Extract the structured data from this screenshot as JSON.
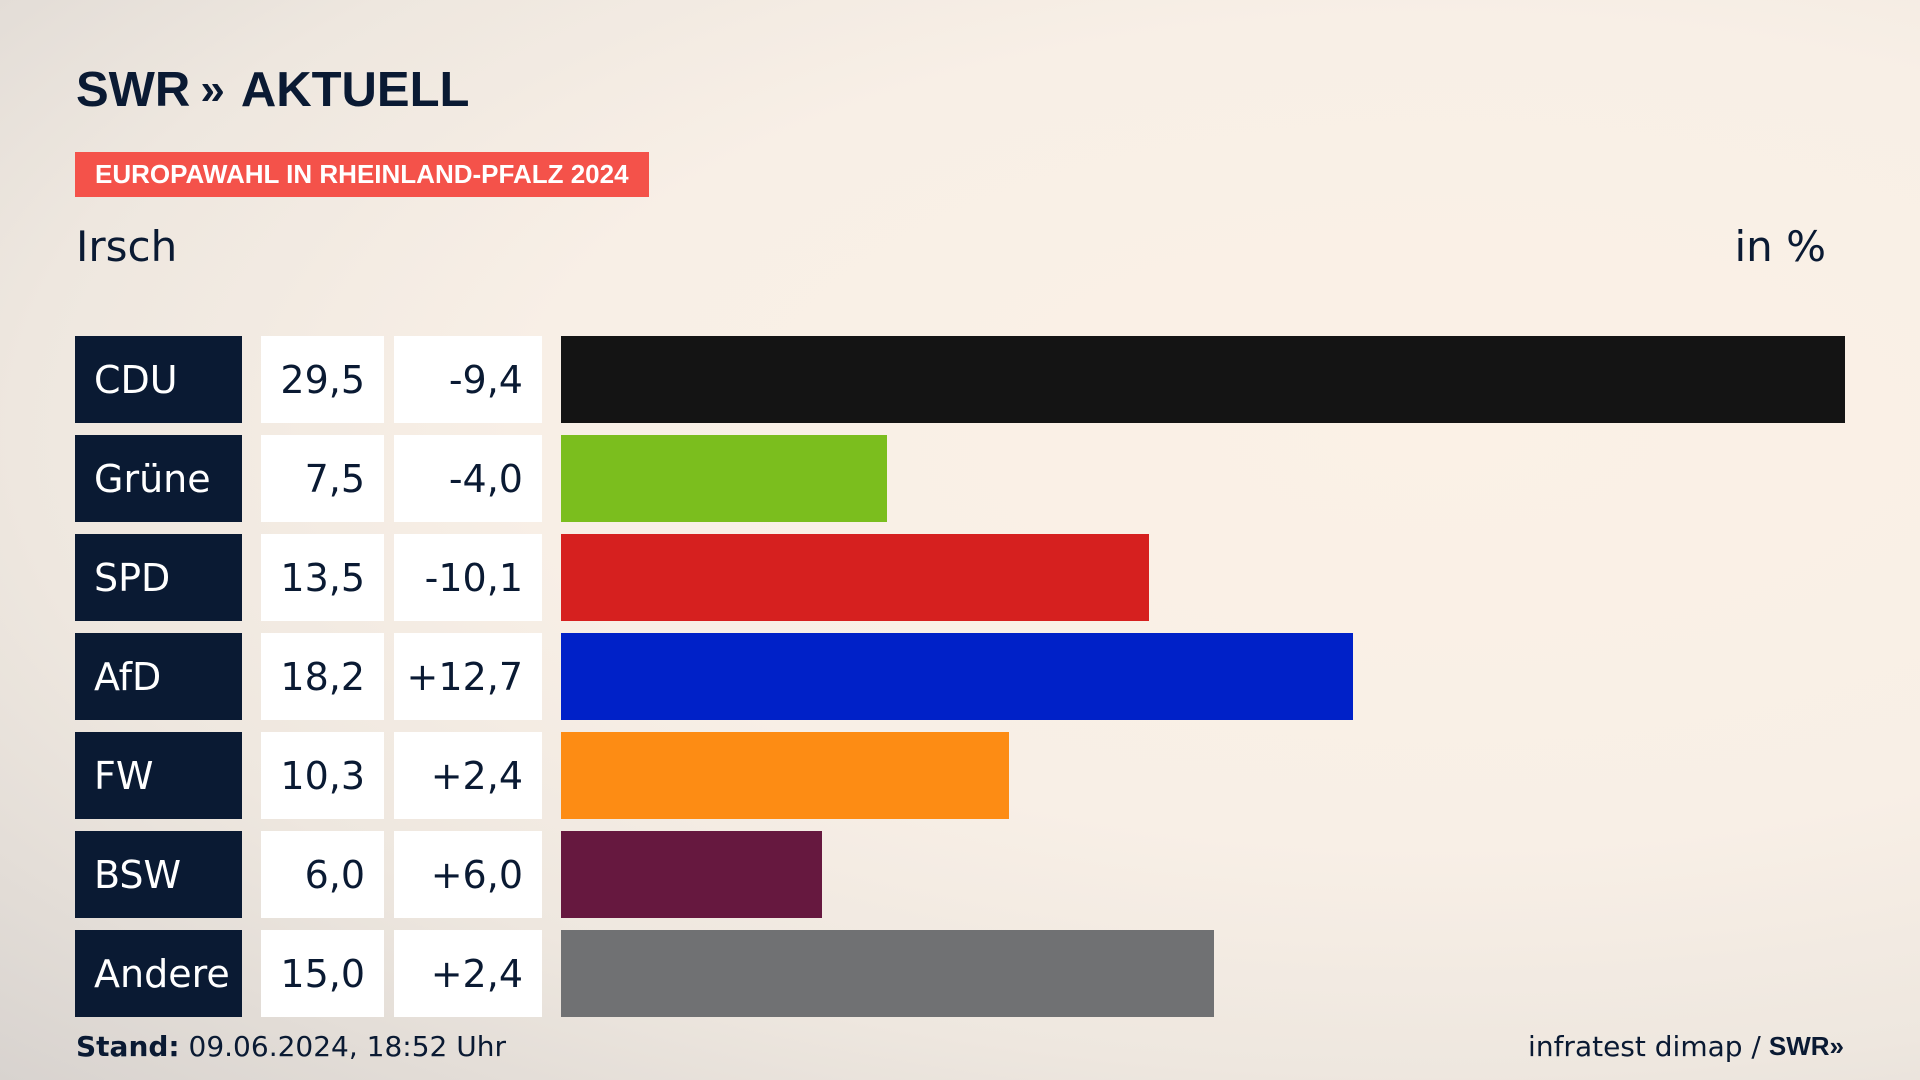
{
  "brand": {
    "name": "SWR",
    "chevrons": "»",
    "section": "AKTUELL"
  },
  "tag": "EUROPAWAHL IN RHEINLAND-PFALZ 2024",
  "place": "Irsch",
  "unit": "in %",
  "chart_data": {
    "type": "bar",
    "title": "Irsch",
    "unit": "in %",
    "categories": [
      "CDU",
      "Grüne",
      "SPD",
      "AfD",
      "FW",
      "BSW",
      "Andere"
    ],
    "values": [
      29.5,
      7.5,
      13.5,
      18.2,
      10.3,
      6.0,
      15.0
    ],
    "values_text": [
      "29,5",
      "7,5",
      "13,5",
      "18,2",
      "10,3",
      "6,0",
      "15,0"
    ],
    "diff_text": [
      "-9,4",
      "-4,0",
      "-10,1",
      "+12,7",
      "+2,4",
      "+6,0",
      "+2,4"
    ],
    "colors": [
      "#141414",
      "#7bbe1e",
      "#d6201f",
      "#0021c8",
      "#fd8c14",
      "#66183f",
      "#707173"
    ]
  },
  "footer": {
    "stand_label": "Stand:",
    "stand_value": "09.06.2024, 18:52 Uhr",
    "source": "infratest dimap /",
    "brand_small": "SWR»"
  }
}
